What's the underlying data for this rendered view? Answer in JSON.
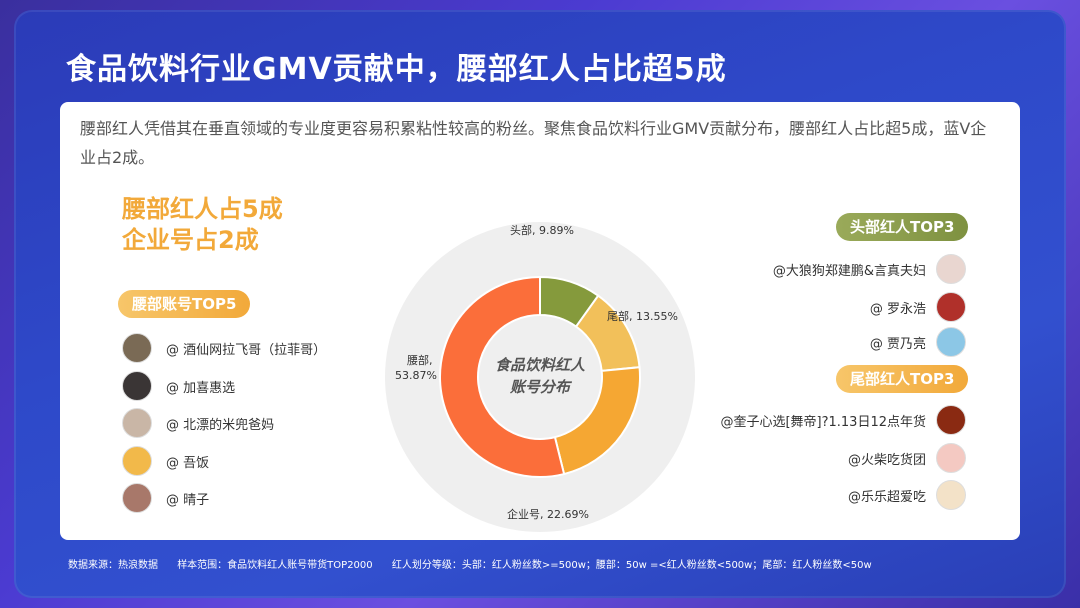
{
  "headline": "食品饮料行业GMV贡献中，腰部红人占比超5成",
  "intro": "腰部红人凭借其在垂直领域的专业度更容易积累粘性较高的粉丝。聚焦食品饮料行业GMV贡献分布，腰部红人占比超5成，蓝V企业占2成。",
  "big_stat": {
    "line1": "腰部红人占5成",
    "line2": "企业号占2成"
  },
  "waist_top5": {
    "label": "腰部账号TOP5",
    "items": [
      {
        "name": "@ 酒仙网拉飞哥（拉菲哥）"
      },
      {
        "name": "@ 加喜惠选"
      },
      {
        "name": "@ 北漂的米兜爸妈"
      },
      {
        "name": "@ 吾饭"
      },
      {
        "name": "@ 晴子"
      }
    ]
  },
  "head_top3": {
    "label": "头部红人TOP3",
    "items": [
      {
        "name": "@大狼狗郑建鹏&言真夫妇"
      },
      {
        "name": "@ 罗永浩"
      },
      {
        "name": "@ 贾乃亮"
      }
    ]
  },
  "tail_top3": {
    "label": "尾部红人TOP3",
    "items": [
      {
        "name": "@奎子心选[舞帝]?1.13日12点年货"
      },
      {
        "name": "@火柴吃货团"
      },
      {
        "name": "@乐乐超爱吃"
      }
    ]
  },
  "chart_data": {
    "type": "pie",
    "center_label": [
      "食品饮料红人",
      "账号分布"
    ],
    "slices": [
      {
        "label": "头部, 9.89%",
        "value": 9.89,
        "color": "#859a3c"
      },
      {
        "label": "尾部, 13.55%",
        "value": 13.55,
        "color": "#f2c05a"
      },
      {
        "label": "企业号, 22.69%",
        "value": 22.69,
        "color": "#f5a733"
      },
      {
        "label": "腰部, 53.87%",
        "value": 53.87,
        "color": "#fb6e3a"
      }
    ]
  },
  "footer": {
    "source": "数据来源：热浪数据",
    "scope": "样本范围：食品饮料红人账号带货TOP2000",
    "grading": "红人划分等级：头部：红人粉丝数>=500w；腰部：50w =<红人粉丝数<500w；尾部：红人粉丝数<50w"
  },
  "colors": {
    "accent_orange": "#f2a93a",
    "accent_olive": "#7e9140",
    "background_blue": "#2e49c9"
  }
}
